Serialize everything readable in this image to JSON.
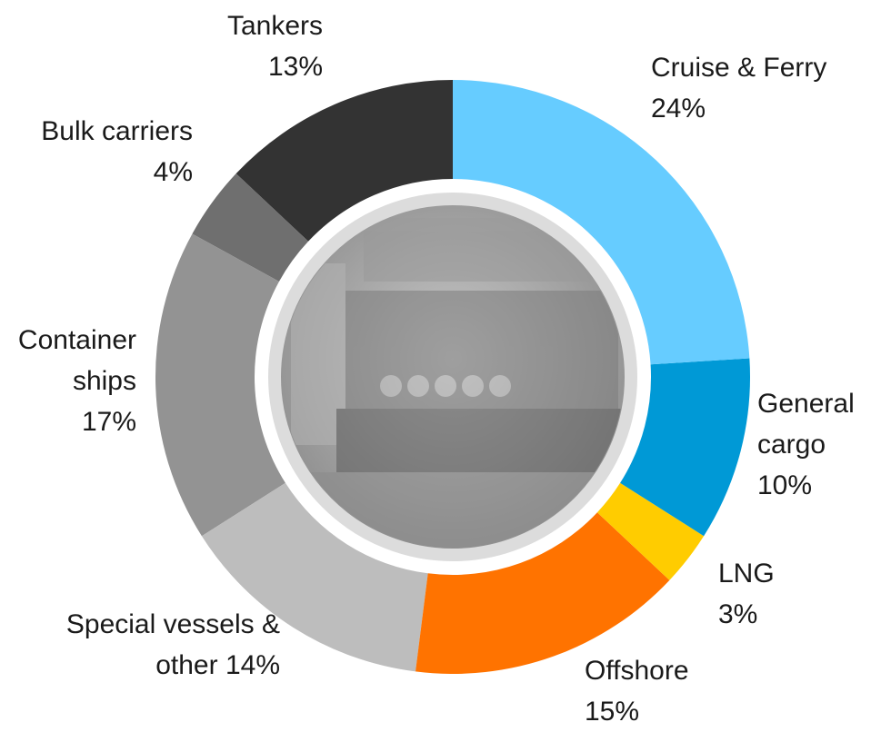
{
  "chart_data": {
    "type": "donut",
    "categories": [
      "Cruise & Ferry",
      "General cargo",
      "LNG",
      "Offshore",
      "Special vessels & other",
      "Container ships",
      "Bulk carriers",
      "Tankers"
    ],
    "values": [
      24,
      10,
      3,
      15,
      14,
      17,
      4,
      13
    ],
    "value_labels": [
      "24%",
      "10%",
      "3%",
      "15%",
      "14%",
      "17%",
      "4%",
      "13%"
    ],
    "colors": [
      "#66ccff",
      "#0099d6",
      "#ffcc00",
      "#ff7300",
      "#bdbdbd",
      "#939393",
      "#6f6f6f",
      "#333333"
    ]
  }
}
